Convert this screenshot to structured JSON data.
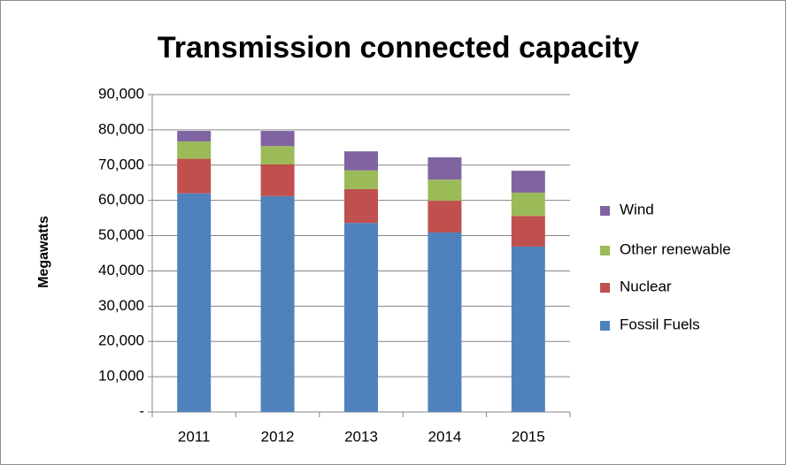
{
  "chart_data": {
    "type": "stacked_bar",
    "title": "Transmission connected capacity",
    "y_label": "Megawatts",
    "categories": [
      "2011",
      "2012",
      "2013",
      "2014",
      "2015"
    ],
    "series": [
      {
        "name": "Fossil Fuels",
        "color": "#4f81bd",
        "values": [
          62000,
          61200,
          53600,
          50900,
          46900
        ]
      },
      {
        "name": "Nuclear",
        "color": "#c0504d",
        "values": [
          9800,
          9000,
          9600,
          9000,
          8700
        ]
      },
      {
        "name": "Other renewable",
        "color": "#9bbb59",
        "values": [
          4900,
          5200,
          5300,
          6000,
          6600
        ]
      },
      {
        "name": "Wind",
        "color": "#8064a2",
        "values": [
          3000,
          4300,
          5400,
          6300,
          6200
        ]
      }
    ],
    "ylim": [
      0,
      90000
    ],
    "yticks": [
      {
        "value": 0,
        "label": "-"
      },
      {
        "value": 10000,
        "label": "10,000"
      },
      {
        "value": 20000,
        "label": "20,000"
      },
      {
        "value": 30000,
        "label": "30,000"
      },
      {
        "value": 40000,
        "label": "40,000"
      },
      {
        "value": 50000,
        "label": "50,000"
      },
      {
        "value": 60000,
        "label": "60,000"
      },
      {
        "value": 70000,
        "label": "70,000"
      },
      {
        "value": 80000,
        "label": "80,000"
      },
      {
        "value": 90000,
        "label": "90,000"
      }
    ],
    "grid": true,
    "legend": "right"
  }
}
